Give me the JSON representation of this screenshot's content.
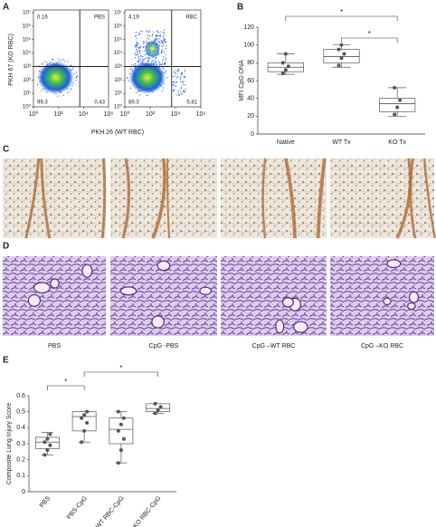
{
  "panel_labels": [
    "A",
    "B",
    "C",
    "D",
    "E"
  ],
  "panel_a": {
    "x_label": "PKH 26 (WT RBC)",
    "y_label": "PKH 67 (KO RBC)"
  },
  "chart_data": [
    {
      "type": "flow",
      "title": "PBS",
      "log_scale": true,
      "xlim": [
        1,
        1000000
      ],
      "ylim": [
        1,
        10000000
      ],
      "xticks": [
        {
          "value": 1,
          "label": "10⁰"
        },
        {
          "value": 100,
          "label": "10²"
        },
        {
          "value": 10000,
          "label": "10⁴"
        },
        {
          "value": 1000000,
          "label": "10⁶"
        }
      ],
      "yticks": [
        {
          "value": 1,
          "label": "10⁰"
        },
        {
          "value": 10,
          "label": "10¹"
        },
        {
          "value": 100,
          "label": "10²"
        },
        {
          "value": 1000,
          "label": "10³"
        },
        {
          "value": 10000,
          "label": "10⁴"
        },
        {
          "value": 100000,
          "label": "10⁵"
        },
        {
          "value": 1000000,
          "label": "10⁶"
        },
        {
          "value": 10000000,
          "label": "10⁷"
        }
      ],
      "gate": [
        5000,
        1000
      ],
      "quadrant_values": {
        "upper_left": 0.16,
        "lower_left": 99.3,
        "lower_right": 0.43
      }
    },
    {
      "type": "flow",
      "title": "RBC",
      "log_scale": true,
      "xlim": [
        1,
        1000000
      ],
      "ylim": [
        1,
        10000000
      ],
      "xticks": [
        {
          "value": 1,
          "label": "10⁰"
        },
        {
          "value": 100,
          "label": "10²"
        },
        {
          "value": 10000,
          "label": "10⁴"
        },
        {
          "value": 1000000,
          "label": "10⁶"
        }
      ],
      "yticks": [
        {
          "value": 1,
          "label": "10⁰"
        },
        {
          "value": 10,
          "label": "10¹"
        },
        {
          "value": 100,
          "label": "10²"
        },
        {
          "value": 1000,
          "label": "10³"
        },
        {
          "value": 10000,
          "label": "10⁴"
        },
        {
          "value": 100000,
          "label": "10⁵"
        },
        {
          "value": 1000000,
          "label": "10⁶"
        },
        {
          "value": 10000000,
          "label": "10⁷"
        }
      ],
      "gate": [
        5000,
        1000
      ],
      "quadrant_values": {
        "upper_left": 4.19,
        "lower_left": 89.3,
        "lower_right": 5.81
      }
    },
    {
      "type": "box",
      "y_label": "MFI CpG-DNA",
      "color": "#555555",
      "categories": [
        "Native",
        "WT Tx",
        "KO Tx"
      ],
      "ylim": [
        0,
        120
      ],
      "yticks": [
        0,
        20,
        40,
        60,
        80,
        100,
        120
      ],
      "boxes": [
        {
          "whisker_low": 67,
          "q1": 70,
          "median": 75,
          "q3": 80,
          "whisker_high": 90,
          "points": [
            68,
            72,
            76,
            80,
            90
          ]
        },
        {
          "whisker_low": 75,
          "q1": 80,
          "median": 87,
          "q3": 95,
          "whisker_high": 100,
          "points": [
            77,
            85,
            90,
            95,
            100
          ]
        },
        {
          "whisker_low": 20,
          "q1": 25,
          "median": 34,
          "q3": 40,
          "whisker_high": 52,
          "points": [
            22,
            30,
            38,
            52
          ]
        }
      ],
      "annotations": [
        "*",
        "*"
      ]
    },
    {
      "type": "box",
      "y_label": "Composite Lung Injury Score",
      "color": "#555555",
      "categories": [
        "PBS",
        "PBS-CpG",
        "WT RBC-CpG",
        "KO RBC-CpG"
      ],
      "ylim": [
        0,
        0.6
      ],
      "yticks": [
        0,
        0.1,
        0.2,
        0.3,
        0.4,
        0.5,
        0.6
      ],
      "boxes": [
        {
          "whisker_low": 0.23,
          "q1": 0.27,
          "median": 0.31,
          "q3": 0.34,
          "whisker_high": 0.37,
          "points": [
            0.23,
            0.26,
            0.29,
            0.31,
            0.33,
            0.36
          ]
        },
        {
          "whisker_low": 0.31,
          "q1": 0.38,
          "median": 0.47,
          "q3": 0.5,
          "whisker_high": 0.5,
          "points": [
            0.31,
            0.38,
            0.43,
            0.46,
            0.48,
            0.5
          ]
        },
        {
          "whisker_low": 0.18,
          "q1": 0.3,
          "median": 0.39,
          "q3": 0.46,
          "whisker_high": 0.5,
          "points": [
            0.18,
            0.26,
            0.33,
            0.38,
            0.42,
            0.46,
            0.5
          ]
        },
        {
          "whisker_low": 0.49,
          "q1": 0.5,
          "median": 0.52,
          "q3": 0.55,
          "whisker_high": 0.55,
          "points": [
            0.49,
            0.51,
            0.53,
            0.55
          ]
        }
      ],
      "annotations": [
        "*",
        "*"
      ]
    }
  ],
  "images": {
    "captions": [
      "PBS",
      "CpG -PBS",
      "CpG –WT RBC",
      "CpG –KO RBC"
    ]
  }
}
